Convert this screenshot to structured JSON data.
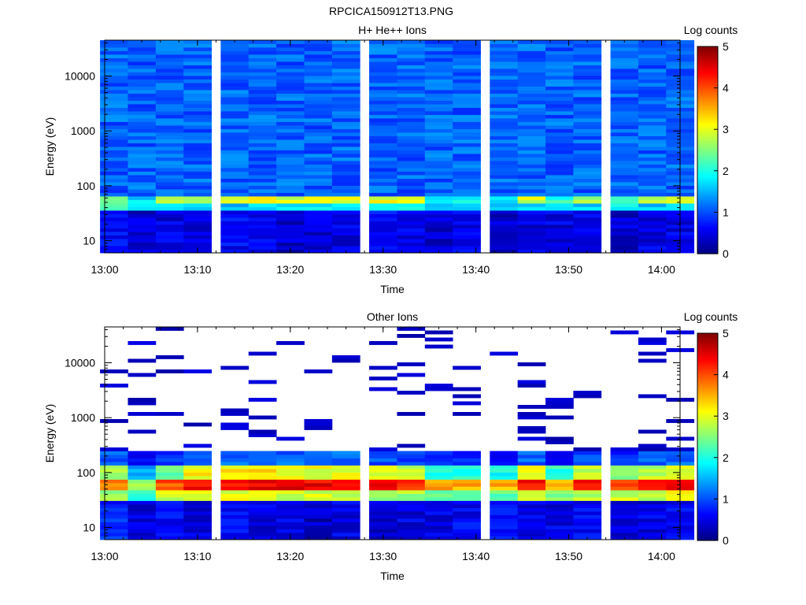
{
  "figure": {
    "filename": "RPCICA150912T13.PNG"
  },
  "chart_data": [
    {
      "type": "heatmap",
      "title": "H+ He++ Ions",
      "xlabel": "Time",
      "ylabel": "Energy (eV)",
      "x_range": [
        "13:00",
        "14:02"
      ],
      "x_ticks": [
        "13:00",
        "13:10",
        "13:20",
        "13:30",
        "13:40",
        "13:50",
        "14:00"
      ],
      "y_scale": "log",
      "y_range": [
        6,
        45000
      ],
      "y_ticks": [
        "10",
        "100",
        "1000",
        "10000"
      ],
      "colorbar": {
        "label": "Log counts",
        "range": [
          0,
          5
        ],
        "ticks": [
          "0",
          "1",
          "2",
          "3",
          "4",
          "5"
        ],
        "colormap": "jet"
      },
      "time_bins": [
        "13:01",
        "13:04",
        "13:07",
        "13:10",
        "13:14",
        "13:17",
        "13:20",
        "13:23",
        "13:26",
        "13:30",
        "13:33",
        "13:36",
        "13:39",
        "13:43",
        "13:46",
        "13:49",
        "13:52",
        "13:56",
        "13:59",
        "14:02"
      ],
      "background_level": 1.1,
      "bands": [
        {
          "energy_range": [
            46,
            66
          ],
          "values": [
            2.4,
            1.7,
            2.6,
            2.9,
            3.1,
            3.2,
            2.9,
            3.3,
            3.1,
            3.0,
            3.1,
            1.8,
            1.9,
            1.6,
            2.9,
            2.1,
            2.8,
            2.3,
            2.8,
            3.0
          ]
        },
        {
          "energy_range": [
            36,
            46
          ],
          "values": [
            2.1,
            1.6,
            1.9,
            1.7,
            1.6,
            1.8,
            1.9,
            1.9,
            1.7,
            1.8,
            1.8,
            1.5,
            1.6,
            1.5,
            1.7,
            1.6,
            1.7,
            1.9,
            1.6,
            1.7
          ]
        },
        {
          "energy_range": [
            6,
            36
          ],
          "values": [
            0.6,
            0.4,
            0.5,
            0.5,
            0.6,
            0.5,
            0.4,
            0.4,
            0.5,
            0.6,
            0.5,
            0.4,
            0.5,
            0.4,
            0.5,
            0.5,
            0.6,
            0.4,
            0.5,
            0.5
          ]
        }
      ]
    },
    {
      "type": "heatmap",
      "title": "Other Ions",
      "xlabel": "Time",
      "ylabel": "Energy (eV)",
      "x_range": [
        "13:00",
        "14:02"
      ],
      "x_ticks": [
        "13:00",
        "13:10",
        "13:20",
        "13:30",
        "13:40",
        "13:50",
        "14:00"
      ],
      "y_scale": "log",
      "y_range": [
        6,
        45000
      ],
      "y_ticks": [
        "10",
        "100",
        "1000",
        "10000"
      ],
      "colorbar": {
        "label": "Log counts",
        "range": [
          0,
          5
        ],
        "ticks": [
          "0",
          "1",
          "2",
          "3",
          "4",
          "5"
        ],
        "colormap": "jet"
      },
      "time_bins": [
        "13:01",
        "13:04",
        "13:07",
        "13:10",
        "13:14",
        "13:17",
        "13:20",
        "13:23",
        "13:26",
        "13:30",
        "13:33",
        "13:36",
        "13:39",
        "13:43",
        "13:46",
        "13:49",
        "13:52",
        "13:56",
        "13:59",
        "14:02"
      ],
      "sparse_level": 0.2,
      "bands": [
        {
          "energy_range": [
            46,
            80
          ],
          "values": [
            3.7,
            2.6,
            4.0,
            4.3,
            4.4,
            4.5,
            4.5,
            4.4,
            4.4,
            4.3,
            4.2,
            3.6,
            3.5,
            3.5,
            4.3,
            3.4,
            4.3,
            4.0,
            4.3,
            4.4
          ]
        },
        {
          "energy_range": [
            80,
            130
          ],
          "values": [
            2.6,
            1.4,
            2.4,
            3.1,
            3.2,
            3.2,
            3.1,
            3.0,
            3.0,
            2.9,
            2.8,
            1.9,
            2.1,
            2.0,
            3.0,
            2.1,
            2.9,
            2.4,
            2.8,
            3.1
          ]
        },
        {
          "energy_range": [
            130,
            260
          ],
          "values": [
            1.0,
            0.6,
            0.9,
            1.1,
            1.2,
            1.2,
            1.1,
            1.1,
            1.1,
            1.0,
            1.0,
            0.7,
            0.8,
            0.7,
            1.1,
            0.7,
            1.0,
            0.9,
            1.0,
            1.1
          ]
        },
        {
          "energy_range": [
            30,
            46
          ],
          "values": [
            2.7,
            2.0,
            2.9,
            3.1,
            3.0,
            3.0,
            2.9,
            2.9,
            2.9,
            2.7,
            2.7,
            2.4,
            2.5,
            2.4,
            2.8,
            2.6,
            2.8,
            2.9,
            2.9,
            3.0
          ]
        },
        {
          "energy_range": [
            6,
            30
          ],
          "values": [
            0.8,
            0.5,
            0.6,
            0.5,
            0.6,
            0.5,
            0.5,
            0.3,
            0.5,
            0.4,
            0.5,
            0.5,
            0.6,
            0.6,
            0.5,
            0.5,
            0.6,
            0.4,
            0.5,
            0.6
          ]
        }
      ]
    }
  ]
}
